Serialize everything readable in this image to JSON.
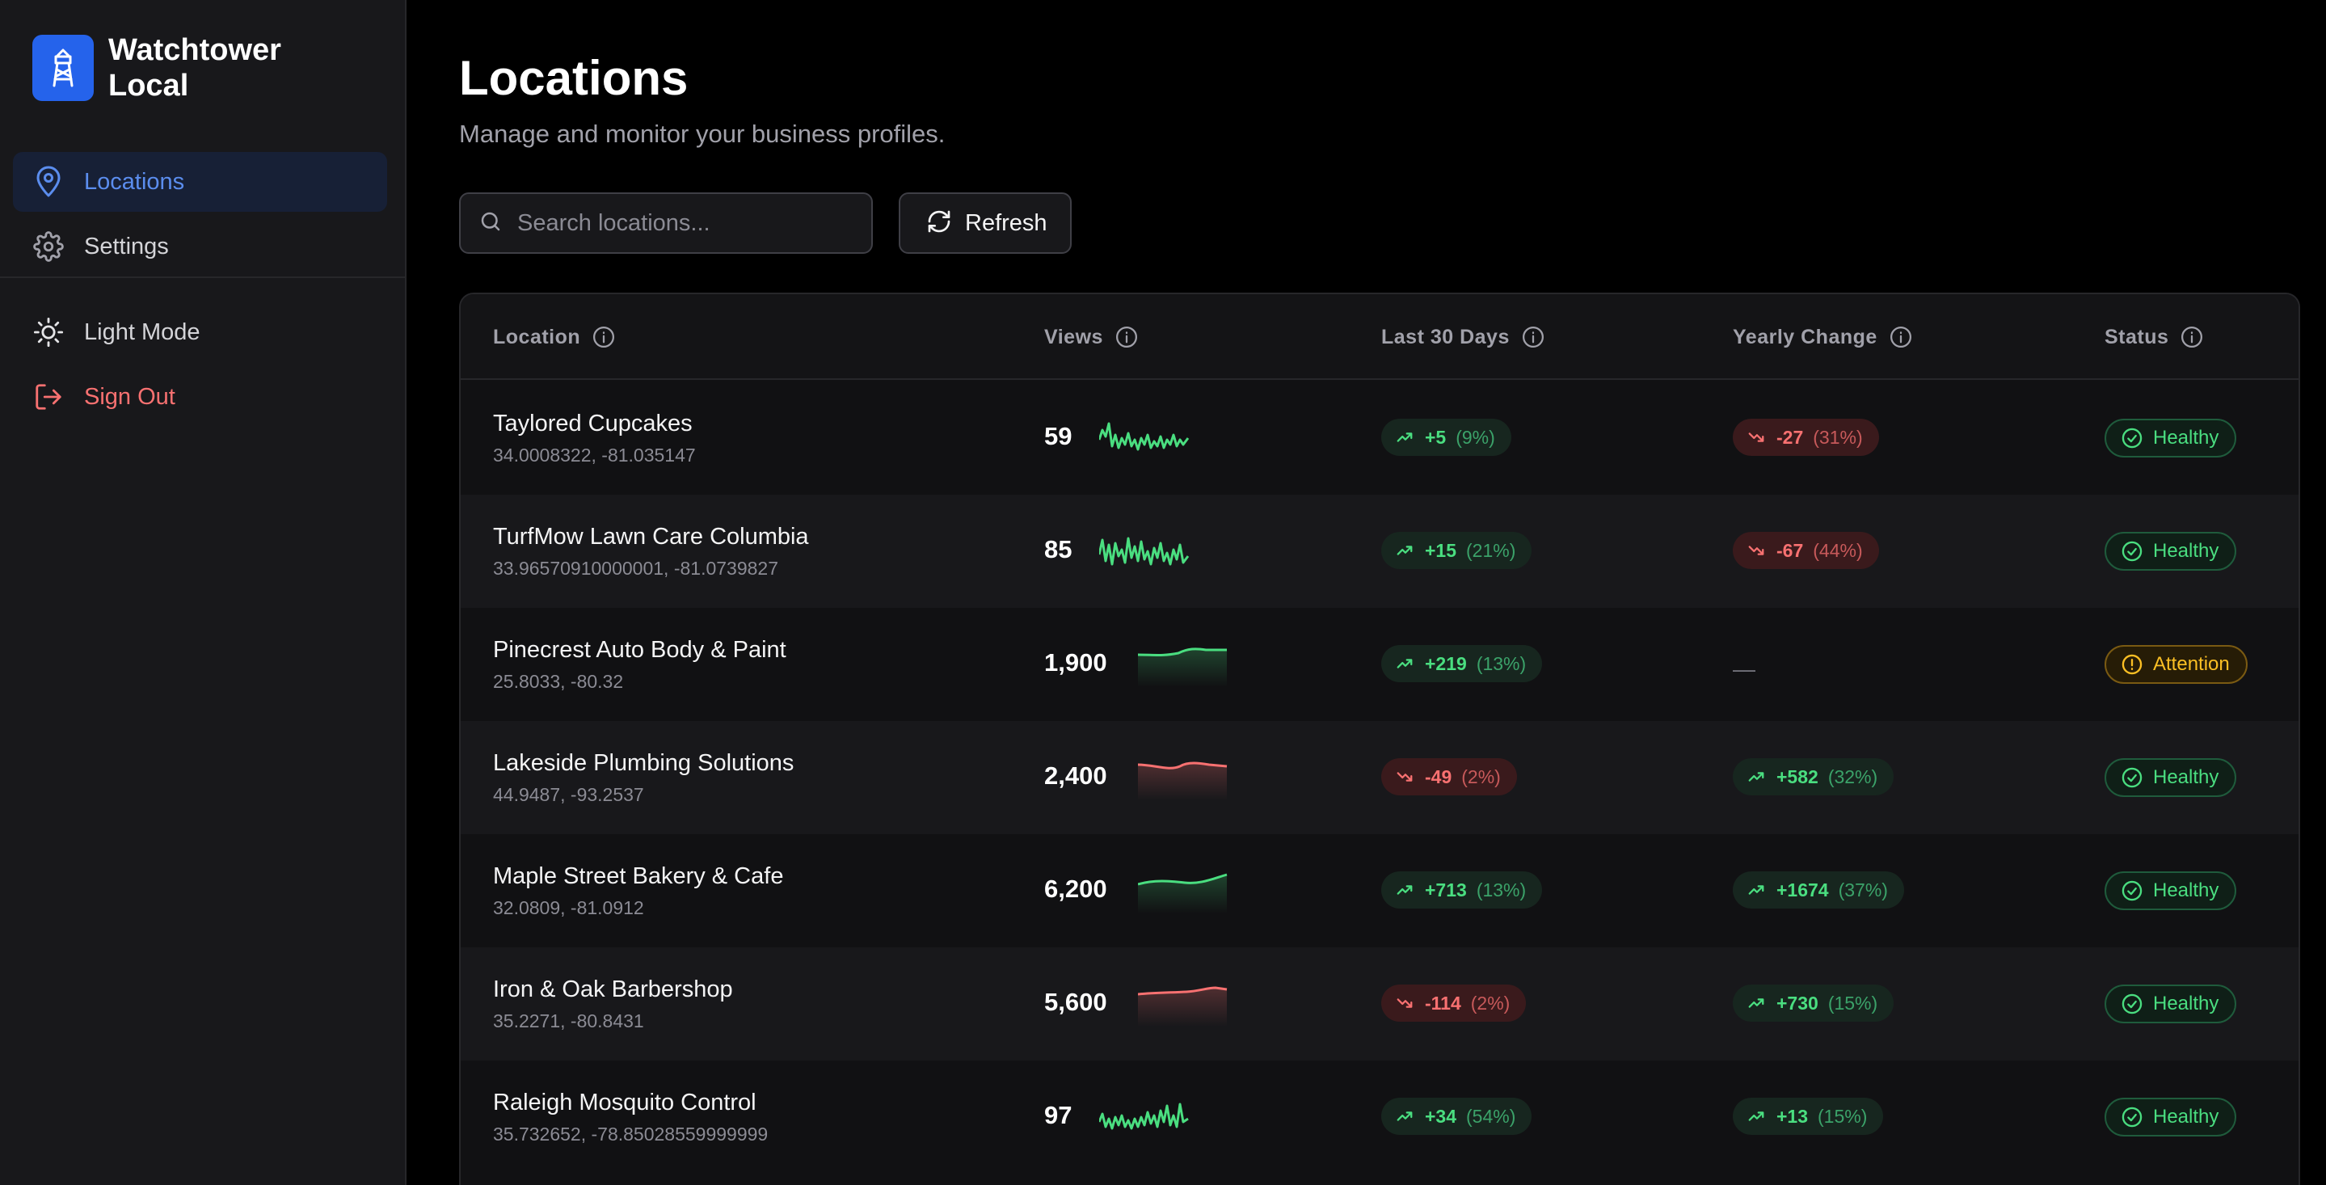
{
  "app": {
    "brand_line1": "Watchtower",
    "brand_line2": "Local"
  },
  "sidebar": {
    "items": [
      {
        "label": "Locations",
        "icon": "map-pin-icon",
        "active": true
      },
      {
        "label": "Settings",
        "icon": "gear-icon",
        "active": false
      }
    ],
    "footer_items": [
      {
        "label": "Light Mode",
        "icon": "sun-icon"
      },
      {
        "label": "Sign Out",
        "icon": "sign-out-icon"
      }
    ]
  },
  "header": {
    "title": "Locations",
    "subtitle": "Manage and monitor your business profiles."
  },
  "toolbar": {
    "search_placeholder": "Search locations...",
    "search_value": "",
    "refresh_label": "Refresh"
  },
  "table": {
    "columns": [
      {
        "label": "Location"
      },
      {
        "label": "Views"
      },
      {
        "label": "Last 30 Days"
      },
      {
        "label": "Yearly Change"
      },
      {
        "label": "Status"
      }
    ],
    "rows": [
      {
        "name": "Taylored Cupcakes",
        "coords": "34.0008322, -81.035147",
        "views": "59",
        "spark_trend": "volatile-up",
        "last30_value": "+5",
        "last30_pct": "(9%)",
        "last30_dir": "up",
        "yearly_value": "-27",
        "yearly_pct": "(31%)",
        "yearly_dir": "down",
        "status": "Healthy"
      },
      {
        "name": "TurfMow Lawn Care Columbia",
        "coords": "33.96570910000001, -81.0739827",
        "views": "85",
        "spark_trend": "volatile-up",
        "last30_value": "+15",
        "last30_pct": "(21%)",
        "last30_dir": "up",
        "yearly_value": "-67",
        "yearly_pct": "(44%)",
        "yearly_dir": "down",
        "status": "Healthy"
      },
      {
        "name": "Pinecrest Auto Body & Paint",
        "coords": "25.8033, -80.32",
        "views": "1,900",
        "spark_trend": "smooth-up",
        "last30_value": "+219",
        "last30_pct": "(13%)",
        "last30_dir": "up",
        "yearly_value": "—",
        "yearly_pct": "",
        "yearly_dir": "none",
        "status": "Attention"
      },
      {
        "name": "Lakeside Plumbing Solutions",
        "coords": "44.9487, -93.2537",
        "views": "2,400",
        "spark_trend": "smooth-down",
        "last30_value": "-49",
        "last30_pct": "(2%)",
        "last30_dir": "down",
        "yearly_value": "+582",
        "yearly_pct": "(32%)",
        "yearly_dir": "up",
        "status": "Healthy"
      },
      {
        "name": "Maple Street Bakery & Cafe",
        "coords": "32.0809, -81.0912",
        "views": "6,200",
        "spark_trend": "smooth-up",
        "last30_value": "+713",
        "last30_pct": "(13%)",
        "last30_dir": "up",
        "yearly_value": "+1674",
        "yearly_pct": "(37%)",
        "yearly_dir": "up",
        "status": "Healthy"
      },
      {
        "name": "Iron & Oak Barbershop",
        "coords": "35.2271, -80.8431",
        "views": "5,600",
        "spark_trend": "smooth-down",
        "last30_value": "-114",
        "last30_pct": "(2%)",
        "last30_dir": "down",
        "yearly_value": "+730",
        "yearly_pct": "(15%)",
        "yearly_dir": "up",
        "status": "Healthy"
      },
      {
        "name": "Raleigh Mosquito Control",
        "coords": "35.732652, -78.85028559999999",
        "views": "97",
        "spark_trend": "volatile-up",
        "last30_value": "+34",
        "last30_pct": "(54%)",
        "last30_dir": "up",
        "yearly_value": "+13",
        "yearly_pct": "(15%)",
        "yearly_dir": "up",
        "status": "Healthy"
      }
    ]
  },
  "colors": {
    "accent": "#2563eb",
    "positive": "#4ade80",
    "negative": "#f87171",
    "warning": "#fbbf24",
    "background": "#000000",
    "sidebar": "#18181b"
  }
}
